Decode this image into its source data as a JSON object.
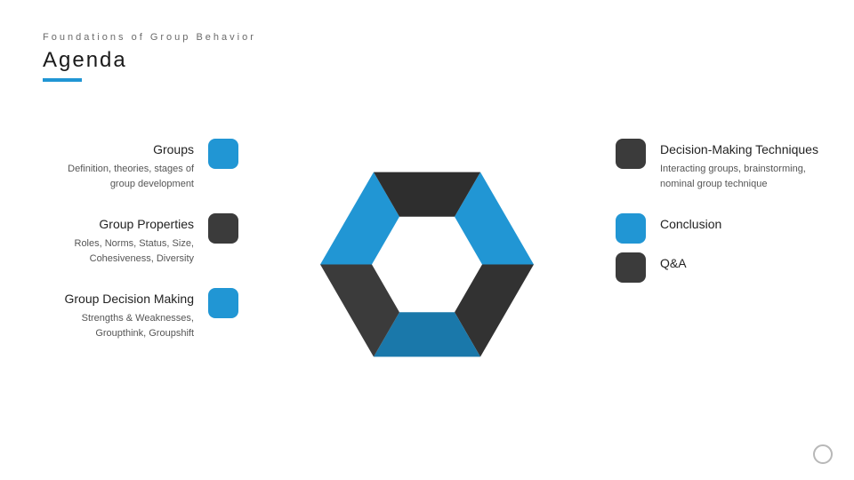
{
  "slide": {
    "eyebrow": "Foundations of Group Behavior",
    "title": "Agenda",
    "underline_color": "#2196d4",
    "background": "#ffffff"
  },
  "colors": {
    "blue": "#2196d4",
    "dark": "#3b3b3b",
    "text": "#1a1a1a",
    "muted": "#555555",
    "ring": "#b8b8b8"
  },
  "left_items": [
    {
      "title": "Groups",
      "desc": "Definition, theories, stages of group development",
      "chip_color": "#2196d4"
    },
    {
      "title": "Group Properties",
      "desc": "Roles, Norms, Status, Size, Cohesiveness, Diversity",
      "chip_color": "#3b3b3b"
    },
    {
      "title": "Group Decision Making",
      "desc": "Strengths & Weaknesses, Groupthink, Groupshift",
      "chip_color": "#2196d4"
    }
  ],
  "right_items": [
    {
      "title": "Decision-Making Techniques",
      "desc": "Interacting groups, brainstorming, nominal group technique",
      "chip_color": "#3b3b3b"
    },
    {
      "title": "Conclusion",
      "desc": "",
      "chip_color": "#2196d4"
    },
    {
      "title": "Q&A",
      "desc": "",
      "chip_color": "#3b3b3b"
    }
  ],
  "hexagon": {
    "outer_radius": 120,
    "inner_radius": 62,
    "segments": [
      {
        "fill": "#2196d4",
        "shade": 1.0
      },
      {
        "fill": "#3b3b3b",
        "shade": 0.85
      },
      {
        "fill": "#2196d4",
        "shade": 0.8
      },
      {
        "fill": "#3b3b3b",
        "shade": 1.0
      },
      {
        "fill": "#2196d4",
        "shade": 1.0
      },
      {
        "fill": "#3b3b3b",
        "shade": 0.78
      }
    ]
  }
}
